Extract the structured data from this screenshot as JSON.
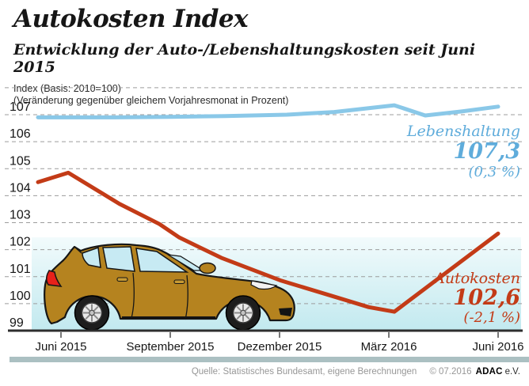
{
  "header": {
    "title": "Autokosten Index",
    "subtitle": "Entwicklung der Auto-/Lebenshaltungskosten seit Juni 2015",
    "note_line1": "Index (Basis: 2010=100)",
    "note_line2": "(Veränderung gegenüber gleichem Vorjahresmonat in Prozent)"
  },
  "chart_data": {
    "type": "line",
    "title": "Autokosten Index",
    "xlabel": "",
    "ylabel": "Index (Basis: 2010=100)",
    "grid": "dashed-horizontal",
    "y_axis": {
      "min": 99,
      "max": 108,
      "labeled_ticks": [
        107,
        106,
        105,
        104,
        103,
        102,
        101,
        100,
        99
      ],
      "unlabeled_gridlines": [
        108,
        107,
        106,
        105,
        104,
        103,
        102,
        101,
        100
      ],
      "baseline_value": 99
    },
    "x_axis": {
      "ticks": [
        {
          "m": 0,
          "label": "Juni 2015"
        },
        {
          "m": 3,
          "label": "September 2015"
        },
        {
          "m": 6,
          "label": "Dezember 2015"
        },
        {
          "m": 9,
          "label": "März 2016"
        },
        {
          "m": 12,
          "label": "Juni 2016"
        }
      ]
    },
    "series": [
      {
        "name": "Lebenshaltung",
        "color": "#8AC8E8",
        "final_value": 107.3,
        "yoy_change_percent": 0.3,
        "points": [
          [
            -0.63,
            106.9
          ],
          [
            1.5,
            106.9
          ],
          [
            3,
            106.92
          ],
          [
            4.5,
            106.95
          ],
          [
            6.2,
            107.0
          ],
          [
            7.5,
            107.1
          ],
          [
            9.15,
            107.35
          ],
          [
            10,
            106.97
          ],
          [
            11,
            107.12
          ],
          [
            12,
            107.3
          ]
        ]
      },
      {
        "name": "Autokosten",
        "color": "#C33B17",
        "final_value": 102.6,
        "yoy_change_percent": -2.1,
        "points": [
          [
            -0.63,
            104.5
          ],
          [
            0.2,
            104.85
          ],
          [
            1.6,
            103.7
          ],
          [
            2.7,
            102.95
          ],
          [
            3.25,
            102.45
          ],
          [
            4.4,
            101.7
          ],
          [
            6.05,
            100.85
          ],
          [
            7.45,
            100.28
          ],
          [
            8.45,
            99.87
          ],
          [
            9.15,
            99.7
          ],
          [
            12,
            102.6
          ]
        ]
      }
    ],
    "annotations": {
      "lebenshaltung": {
        "label": "Lebenshaltung",
        "value": "107,3",
        "change": "(0,3 %)",
        "color": "#5FACDB"
      },
      "autokosten": {
        "label": "Autokosten",
        "value": "102,6",
        "change": "(-2,1 %)",
        "color": "#C33B17"
      }
    },
    "band_color_top": "#F2FBFC",
    "band_color_bottom": "#C2E9EF"
  },
  "footer": {
    "source": "Quelle: Statistisches Bundesamt, eigene Berechnungen",
    "copyright": "© 07.2016",
    "brand": "ADAC",
    "brand_suffix": "e.V."
  }
}
